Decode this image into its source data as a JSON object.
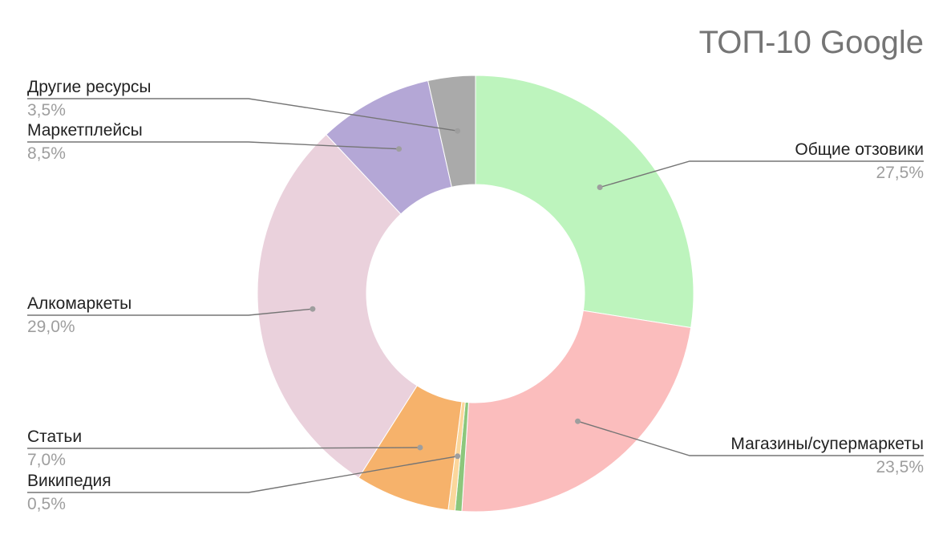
{
  "chart_data": {
    "type": "pie",
    "title": "ТОП-10 Google",
    "donut": true,
    "slices": [
      {
        "label": "Общие отзовики",
        "value": 27.5,
        "value_label": "27,5%",
        "color": "#bdf4bd"
      },
      {
        "label": "Магазины/супермаркеты",
        "value": 23.5,
        "value_label": "23,5%",
        "color": "#fbbdbd"
      },
      {
        "label": "",
        "value": 0.5,
        "value_label": "",
        "color": "#8cc77c"
      },
      {
        "label": "Википедия",
        "value": 0.5,
        "value_label": "0,5%",
        "color": "#fbd79c"
      },
      {
        "label": "Статьи",
        "value": 7.0,
        "value_label": "7,0%",
        "color": "#f6b26b"
      },
      {
        "label": "Алкомаркеты",
        "value": 29.0,
        "value_label": "29,0%",
        "color": "#ead1dc"
      },
      {
        "label": "Маркетплейсы",
        "value": 8.5,
        "value_label": "8,5%",
        "color": "#b4a7d6"
      },
      {
        "label": "Другие ресурсы",
        "value": 3.5,
        "value_label": "3,5%",
        "color": "#aaaaaa"
      }
    ]
  }
}
